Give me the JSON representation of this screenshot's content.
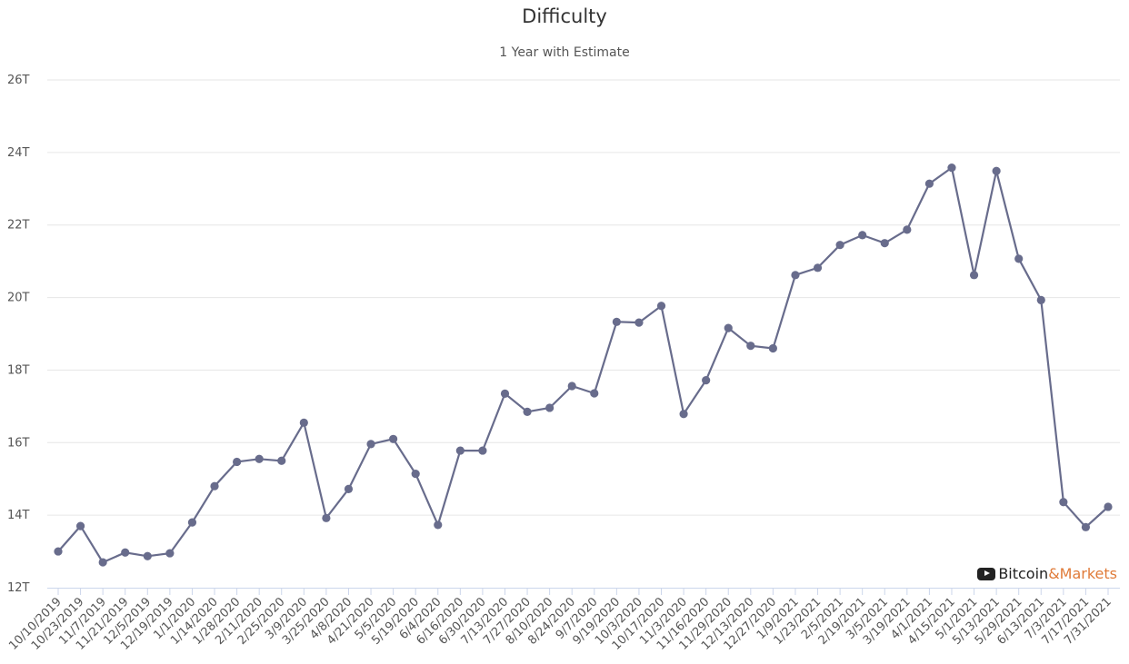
{
  "chart_data": {
    "type": "line",
    "title": "Difficulty",
    "subtitle": "1 Year with Estimate",
    "ylim": [
      12,
      26
    ],
    "yticks": [
      "12T",
      "14T",
      "16T",
      "18T",
      "20T",
      "22T",
      "24T",
      "26T"
    ],
    "grid": true,
    "unit": "T",
    "color": "#686c8c",
    "categories": [
      "10/10/2019",
      "10/23/2019",
      "11/7/2019",
      "11/21/2019",
      "12/5/2019",
      "12/19/2019",
      "1/1/2020",
      "1/14/2020",
      "1/28/2020",
      "2/11/2020",
      "2/25/2020",
      "3/9/2020",
      "3/25/2020",
      "4/8/2020",
      "4/21/2020",
      "5/5/2020",
      "5/19/2020",
      "6/4/2020",
      "6/16/2020",
      "6/30/2020",
      "7/13/2020",
      "7/27/2020",
      "8/10/2020",
      "8/24/2020",
      "9/7/2020",
      "9/19/2020",
      "10/3/2020",
      "10/17/2020",
      "11/3/2020",
      "11/16/2020",
      "11/29/2020",
      "12/13/2020",
      "12/27/2020",
      "1/9/2021",
      "1/23/2021",
      "2/5/2021",
      "2/19/2021",
      "3/5/2021",
      "3/19/2021",
      "4/1/2021",
      "4/15/2021",
      "5/1/2021",
      "5/13/2021",
      "5/29/2021",
      "6/13/2021",
      "7/3/2021",
      "7/17/2021",
      "7/31/2021"
    ],
    "series": [
      {
        "values": [
          13.0,
          13.7,
          12.7,
          12.97,
          12.87,
          12.95,
          13.8,
          14.8,
          15.47,
          15.55,
          15.5,
          16.55,
          13.92,
          14.72,
          15.96,
          16.1,
          15.14,
          13.73,
          15.78,
          15.78,
          17.35,
          16.85,
          16.96,
          17.56,
          17.36,
          19.33,
          19.31,
          19.77,
          16.79,
          17.72,
          19.16,
          18.67,
          18.6,
          20.62,
          20.82,
          21.45,
          21.72,
          21.5,
          21.87,
          23.14,
          23.58,
          20.62,
          23.49,
          21.07,
          19.93,
          14.36,
          13.67,
          14.23
        ]
      }
    ]
  },
  "branding": {
    "part1": "Bitcoin",
    "part2": "&Markets",
    "icon": "play-button-icon"
  }
}
